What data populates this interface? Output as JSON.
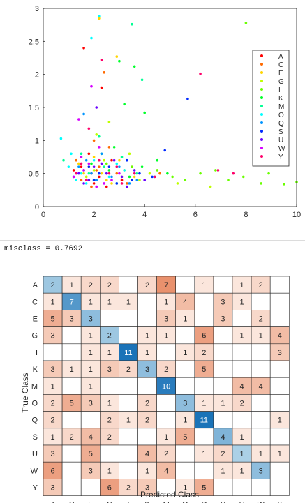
{
  "console": {
    "output": "misclass = 0.7692"
  },
  "chart_data": [
    {
      "type": "scatter",
      "title": "",
      "xlabel": "",
      "ylabel": "",
      "xlim": [
        0,
        10
      ],
      "ylim": [
        0,
        3
      ],
      "x_ticks": [
        0,
        2,
        4,
        6,
        8,
        10
      ],
      "y_ticks": [
        0,
        0.5,
        1,
        1.5,
        2,
        2.5,
        3
      ],
      "legend_position": "right",
      "grid": false,
      "series": [
        {
          "name": "A",
          "color": "#ff0000",
          "points": [
            [
              1.6,
              2.4
            ],
            [
              2.3,
              1.8
            ],
            [
              1.9,
              0.5
            ],
            [
              2.2,
              0.45
            ],
            [
              1.5,
              0.6
            ],
            [
              2.7,
              0.7
            ],
            [
              3.1,
              0.4
            ],
            [
              2.0,
              0.35
            ],
            [
              1.2,
              0.55
            ],
            [
              2.5,
              0.3
            ],
            [
              3.5,
              0.6
            ],
            [
              1.8,
              0.8
            ]
          ]
        },
        {
          "name": "C",
          "color": "#ff6a00",
          "points": [
            [
              2.4,
              2.03
            ],
            [
              2.1,
              0.55
            ],
            [
              1.7,
              0.45
            ],
            [
              2.9,
              0.5
            ],
            [
              1.3,
              0.7
            ],
            [
              2.6,
              0.9
            ],
            [
              3.3,
              0.35
            ],
            [
              2.0,
              1.0
            ],
            [
              1.5,
              0.4
            ],
            [
              4.6,
              0.5
            ],
            [
              2.2,
              0.6
            ],
            [
              1.9,
              0.3
            ]
          ]
        },
        {
          "name": "E",
          "color": "#ffd500",
          "points": [
            [
              2.9,
              2.27
            ],
            [
              2.2,
              2.85
            ],
            [
              2.5,
              0.4
            ],
            [
              1.8,
              0.6
            ],
            [
              3.0,
              0.7
            ],
            [
              2.3,
              0.5
            ],
            [
              1.6,
              0.5
            ],
            [
              3.6,
              0.45
            ],
            [
              2.7,
              0.35
            ],
            [
              2.0,
              0.75
            ],
            [
              1.4,
              0.65
            ],
            [
              3.2,
              0.55
            ]
          ]
        },
        {
          "name": "G",
          "color": "#bfff00",
          "points": [
            [
              2.6,
              1.28
            ],
            [
              2.1,
              1.09
            ],
            [
              3.4,
              0.8
            ],
            [
              2.9,
              0.6
            ],
            [
              4.2,
              0.5
            ],
            [
              5.3,
              0.35
            ],
            [
              1.7,
              0.45
            ],
            [
              2.4,
              0.7
            ],
            [
              3.8,
              0.4
            ],
            [
              6.6,
              0.3
            ],
            [
              2.0,
              0.55
            ],
            [
              3.1,
              0.45
            ]
          ]
        },
        {
          "name": "I",
          "color": "#6aff00",
          "points": [
            [
              8.0,
              2.78
            ],
            [
              9.5,
              0.34
            ],
            [
              10.0,
              0.37
            ],
            [
              8.6,
              0.35
            ],
            [
              6.2,
              0.5
            ],
            [
              7.3,
              0.4
            ],
            [
              5.6,
              0.4
            ],
            [
              4.5,
              0.55
            ],
            [
              3.5,
              0.6
            ],
            [
              2.5,
              0.65
            ],
            [
              8.9,
              0.5
            ],
            [
              7.9,
              0.45
            ],
            [
              6.8,
              0.55
            ],
            [
              5.1,
              0.45
            ]
          ]
        },
        {
          "name": "K",
          "color": "#00ff2a",
          "points": [
            [
              3.0,
              2.2
            ],
            [
              3.6,
              2.12
            ],
            [
              4.0,
              1.42
            ],
            [
              3.2,
              1.55
            ],
            [
              2.8,
              0.9
            ],
            [
              3.9,
              0.6
            ],
            [
              4.5,
              0.7
            ],
            [
              2.3,
              0.8
            ],
            [
              1.9,
              0.65
            ],
            [
              3.4,
              0.45
            ],
            [
              2.6,
              0.55
            ],
            [
              4.9,
              0.5
            ]
          ]
        },
        {
          "name": "M",
          "color": "#00ff95",
          "points": [
            [
              3.5,
              2.76
            ],
            [
              3.9,
              1.92
            ],
            [
              2.2,
              1.06
            ],
            [
              0.8,
              0.7
            ],
            [
              1.5,
              0.8
            ],
            [
              2.9,
              0.35
            ],
            [
              3.7,
              0.5
            ],
            [
              4.4,
              0.45
            ],
            [
              2.4,
              0.6
            ],
            [
              1.8,
              0.5
            ],
            [
              3.1,
              0.75
            ],
            [
              2.0,
              0.4
            ]
          ]
        },
        {
          "name": "O",
          "color": "#00ffff",
          "points": [
            [
              2.2,
              2.88
            ],
            [
              1.9,
              2.55
            ],
            [
              0.7,
              1.03
            ],
            [
              1.1,
              0.8
            ],
            [
              1.5,
              0.5
            ],
            [
              2.6,
              0.45
            ],
            [
              1.3,
              0.4
            ],
            [
              3.2,
              0.55
            ],
            [
              2.0,
              0.7
            ],
            [
              1.7,
              0.35
            ],
            [
              2.9,
              0.65
            ],
            [
              1.0,
              0.6
            ]
          ]
        },
        {
          "name": "Q",
          "color": "#0095ff",
          "points": [
            [
              1.6,
              1.4
            ],
            [
              2.3,
              0.8
            ],
            [
              1.9,
              0.5
            ],
            [
              2.7,
              0.45
            ],
            [
              3.4,
              0.35
            ],
            [
              1.4,
              0.6
            ],
            [
              2.1,
              0.4
            ],
            [
              3.0,
              0.6
            ],
            [
              1.7,
              0.7
            ],
            [
              2.5,
              0.5
            ],
            [
              3.7,
              0.4
            ],
            [
              1.2,
              0.45
            ]
          ]
        },
        {
          "name": "S",
          "color": "#002aff",
          "points": [
            [
              5.7,
              1.63
            ],
            [
              4.8,
              0.85
            ],
            [
              3.3,
              0.7
            ],
            [
              2.6,
              0.6
            ],
            [
              2.0,
              0.4
            ],
            [
              3.8,
              0.5
            ],
            [
              1.6,
              0.55
            ],
            [
              4.3,
              0.45
            ],
            [
              2.9,
              0.35
            ],
            [
              2.2,
              0.5
            ],
            [
              3.5,
              0.4
            ],
            [
              1.8,
              0.6
            ]
          ]
        },
        {
          "name": "U",
          "color": "#6a00ff",
          "points": [
            [
              2.1,
              1.5
            ],
            [
              2.5,
              0.5
            ],
            [
              1.8,
              0.4
            ],
            [
              3.1,
              0.45
            ],
            [
              2.3,
              0.65
            ],
            [
              1.4,
              0.5
            ],
            [
              3.6,
              0.55
            ],
            [
              2.8,
              0.7
            ],
            [
              1.6,
              0.35
            ],
            [
              2.0,
              0.6
            ],
            [
              4.0,
              0.4
            ],
            [
              3.3,
              0.3
            ]
          ]
        },
        {
          "name": "W",
          "color": "#d500ff",
          "points": [
            [
              1.9,
              1.82
            ],
            [
              1.4,
              1.32
            ],
            [
              2.2,
              0.9
            ],
            [
              1.6,
              0.55
            ],
            [
              2.7,
              0.4
            ],
            [
              1.2,
              0.45
            ],
            [
              2.4,
              0.35
            ],
            [
              3.0,
              0.5
            ],
            [
              1.8,
              0.65
            ],
            [
              2.1,
              0.3
            ],
            [
              1.5,
              0.75
            ],
            [
              2.9,
              0.6
            ]
          ]
        },
        {
          "name": "Y",
          "color": "#ff006a",
          "points": [
            [
              6.2,
              2.01
            ],
            [
              2.3,
              2.22
            ],
            [
              1.8,
              1.18
            ],
            [
              2.6,
              0.5
            ],
            [
              1.3,
              0.5
            ],
            [
              3.1,
              0.35
            ],
            [
              1.7,
              0.4
            ],
            [
              2.2,
              0.7
            ],
            [
              4.4,
              0.45
            ],
            [
              2.9,
              0.6
            ],
            [
              1.5,
              0.65
            ],
            [
              3.6,
              0.5
            ],
            [
              7.5,
              0.5
            ],
            [
              6.9,
              0.55
            ]
          ]
        }
      ]
    },
    {
      "type": "heatmap",
      "title": "",
      "xlabel": "Predicted Class",
      "ylabel": "True Class",
      "categories": [
        "A",
        "C",
        "E",
        "G",
        "I",
        "K",
        "M",
        "O",
        "Q",
        "S",
        "U",
        "W",
        "Y"
      ],
      "values": [
        [
          2,
          1,
          2,
          2,
          0,
          2,
          7,
          0,
          1,
          0,
          1,
          2,
          0
        ],
        [
          1,
          7,
          1,
          1,
          1,
          0,
          1,
          4,
          0,
          3,
          1,
          0,
          0
        ],
        [
          5,
          3,
          3,
          0,
          0,
          0,
          3,
          1,
          0,
          3,
          0,
          2,
          0
        ],
        [
          3,
          0,
          1,
          2,
          0,
          1,
          1,
          0,
          6,
          0,
          1,
          1,
          4
        ],
        [
          0,
          0,
          1,
          1,
          11,
          1,
          0,
          1,
          2,
          0,
          0,
          0,
          3
        ],
        [
          3,
          1,
          1,
          3,
          2,
          3,
          2,
          0,
          5,
          0,
          0,
          0,
          0
        ],
        [
          1,
          0,
          1,
          0,
          0,
          0,
          10,
          0,
          0,
          0,
          4,
          4,
          0
        ],
        [
          2,
          5,
          3,
          1,
          0,
          2,
          0,
          3,
          1,
          1,
          2,
          0,
          0
        ],
        [
          2,
          0,
          0,
          2,
          1,
          2,
          0,
          1,
          11,
          0,
          0,
          0,
          1
        ],
        [
          1,
          2,
          4,
          2,
          0,
          0,
          1,
          5,
          0,
          4,
          1,
          0,
          0
        ],
        [
          3,
          0,
          5,
          0,
          0,
          4,
          2,
          0,
          1,
          2,
          1,
          1,
          1
        ],
        [
          6,
          0,
          3,
          1,
          0,
          1,
          4,
          0,
          0,
          1,
          1,
          3,
          0
        ],
        [
          3,
          0,
          0,
          6,
          2,
          3,
          0,
          1,
          5,
          0,
          0,
          0,
          0
        ]
      ]
    }
  ],
  "colors": {
    "diag_light": "#abd0e6",
    "diag_dark": "#1a73b8",
    "off_light": "#fbe6dc",
    "off_dark": "#e9916d",
    "grid": "#262626"
  }
}
